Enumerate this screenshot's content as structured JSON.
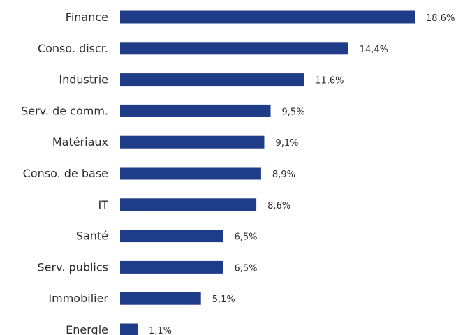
{
  "chart_data": {
    "type": "bar",
    "orientation": "horizontal",
    "categories": [
      "Finance",
      "Conso. discr.",
      "Industrie",
      "Serv. de comm.",
      "Matériaux",
      "Conso. de base",
      "IT",
      "Santé",
      "Serv. publics",
      "Immobilier",
      "Energie"
    ],
    "values": [
      18.6,
      14.4,
      11.6,
      9.5,
      9.1,
      8.9,
      8.6,
      6.5,
      6.5,
      5.1,
      1.1
    ],
    "value_labels": [
      "18,6%",
      "14,4%",
      "11,6%",
      "9,5%",
      "9,1%",
      "8,9%",
      "8,6%",
      "6,5%",
      "6,5%",
      "5,1%",
      "1,1%"
    ],
    "bar_color": "#1f3c88",
    "xlim": [
      0,
      18.6
    ],
    "grid": false,
    "legend": "none"
  }
}
